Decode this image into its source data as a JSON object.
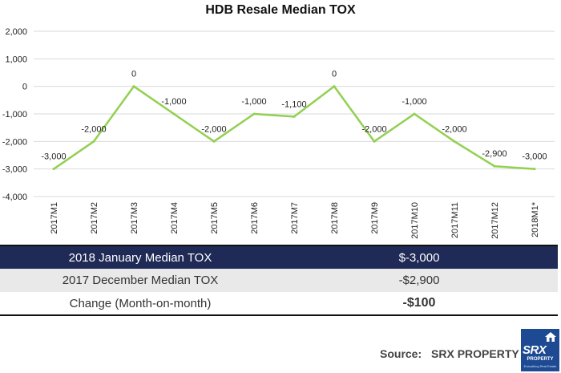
{
  "chart_data": {
    "type": "line",
    "title": "HDB Resale Median TOX",
    "xlabel": "",
    "ylabel": "",
    "categories": [
      "2017M1",
      "2017M2",
      "2017M3",
      "2017M4",
      "2017M5",
      "2017M6",
      "2017M7",
      "2017M8",
      "2017M9",
      "2017M10",
      "2017M11",
      "2017M12",
      "2018M1*"
    ],
    "series": [
      {
        "values": [
          -3000,
          -2000,
          0,
          -1000,
          -2000,
          -1000,
          -1100,
          0,
          -2000,
          -1000,
          -2000,
          -2900,
          -3000
        ]
      }
    ],
    "data_labels": [
      "-3,000",
      "-2,000",
      "0",
      "-1,000",
      "-2,000",
      "-1,000",
      "-1,100",
      "0",
      "-2,000",
      "-1,000",
      "-2,000",
      "-2,900",
      "-3,000"
    ],
    "ylim": [
      -4000,
      2000
    ],
    "yticks": [
      2000,
      1000,
      0,
      -1000,
      -2000,
      -3000,
      -4000
    ],
    "ytick_labels": [
      "2,000",
      "1,000",
      "0",
      "-1,000",
      "-2,000",
      "-3,000",
      "-4,000"
    ],
    "grid": true,
    "legend": "none",
    "line_color": "#92d050",
    "grid_color": "#d9d9d9"
  },
  "summary": {
    "rows": [
      {
        "label": "2018 January Median TOX",
        "value": "$-3,000"
      },
      {
        "label": "2017 December Median TOX",
        "value": "-$2,900"
      },
      {
        "label": "Change (Month-on-month)",
        "value": "-$100"
      }
    ],
    "header_color": "#1f2a56",
    "change_color": "#e0191d"
  },
  "source": {
    "label": "Source:",
    "name": "SRX PROPERTY"
  },
  "logo": {
    "text": "SRX",
    "subtext": "PROPERTY",
    "tagline": "Everything Real Estate",
    "icon": "house-icon",
    "color": "#1d4a92"
  }
}
